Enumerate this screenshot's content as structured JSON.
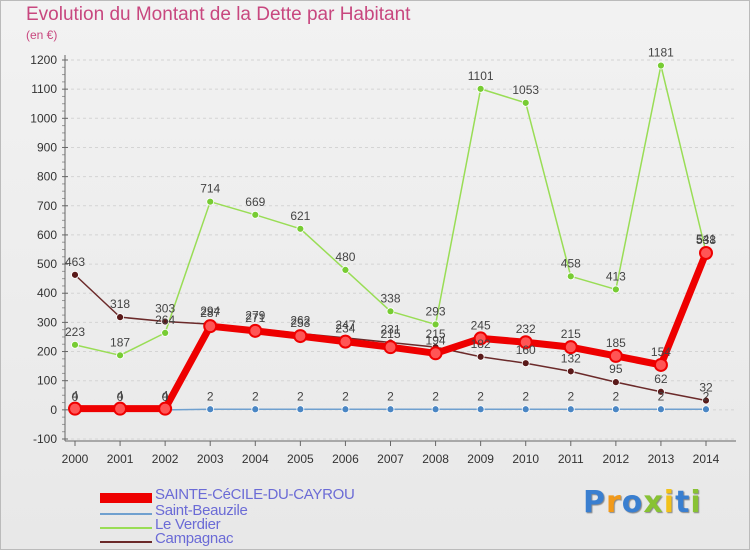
{
  "chart_data": {
    "type": "line",
    "title": "Evolution du Montant de la Dette par Habitant",
    "unit_label": "(en €)",
    "ylim": [
      -100,
      1200
    ],
    "yticks": [
      -100,
      0,
      100,
      200,
      300,
      400,
      500,
      600,
      700,
      800,
      900,
      1000,
      1100,
      1200
    ],
    "categories": [
      "2000",
      "2001",
      "2002",
      "2003",
      "2004",
      "2005",
      "2006",
      "2007",
      "2008",
      "2009",
      "2010",
      "2011",
      "2012",
      "2013",
      "2014"
    ],
    "grid": "horizontal dashed",
    "legend_position": "bottom-left",
    "series": [
      {
        "name": "SAINTE-CéCILE-DU-CAYROU",
        "color": "#ee0000",
        "values": [
          4,
          4,
          4,
          287,
          271,
          253,
          234,
          215,
          194,
          245,
          232,
          215,
          185,
          154,
          538
        ]
      },
      {
        "name": "Saint-Beauzile",
        "color": "#6fa0cf",
        "values": [
          0,
          0,
          0,
          2,
          2,
          2,
          2,
          2,
          2,
          2,
          2,
          2,
          2,
          2,
          2
        ]
      },
      {
        "name": "Le Verdier",
        "color": "#99dd55",
        "values": [
          223,
          187,
          264,
          714,
          669,
          621,
          480,
          338,
          293,
          1101,
          1053,
          458,
          413,
          1181,
          541
        ]
      },
      {
        "name": "Campagnac",
        "color": "#6b2a2a",
        "values": [
          463,
          318,
          303,
          294,
          279,
          262,
          247,
          231,
          215,
          182,
          160,
          132,
          95,
          62,
          32
        ]
      }
    ]
  },
  "branding": {
    "letters": [
      "P",
      "r",
      "o",
      "x",
      "i",
      "t",
      "i"
    ],
    "colors": [
      "#3a7fd0",
      "#f29a1a",
      "#3a7fd0",
      "#88c234",
      "#f2c21a",
      "#3a7fd0",
      "#88c234"
    ]
  }
}
